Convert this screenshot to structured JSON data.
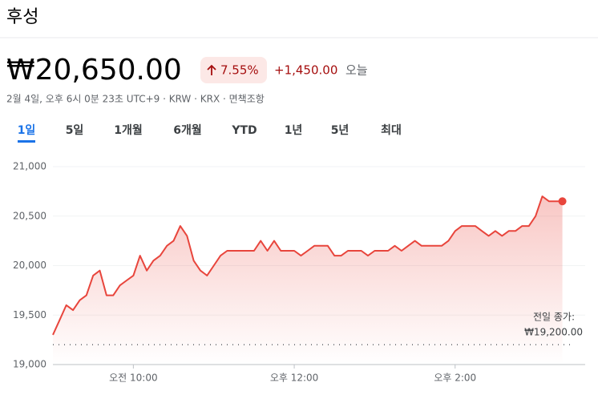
{
  "header": {
    "title": "후성",
    "price": "₩20,650.00",
    "change_percent": "7.55%",
    "change": "+1,450.00",
    "period": "오늘",
    "meta": "2월 4일, 오후 6시 0분 23초 UTC+9 · KRW · KRX · 면책조항"
  },
  "tabs": [
    "1일",
    "5일",
    "1개월",
    "6개월",
    "YTD",
    "1년",
    "5년",
    "최대"
  ],
  "chart_data": {
    "type": "line",
    "color": "#e8453c",
    "grid": true,
    "x": [
      540,
      545,
      550,
      555,
      560,
      565,
      570,
      575,
      580,
      585,
      590,
      595,
      600,
      605,
      610,
      615,
      620,
      625,
      630,
      635,
      640,
      645,
      650,
      655,
      660,
      665,
      670,
      675,
      680,
      685,
      690,
      695,
      700,
      705,
      710,
      715,
      720,
      725,
      730,
      735,
      740,
      745,
      750,
      755,
      760,
      765,
      770,
      775,
      780,
      785,
      790,
      795,
      800,
      805,
      810,
      815,
      820,
      825,
      830,
      835,
      840,
      845,
      850,
      855,
      860,
      865,
      870,
      875,
      880,
      885,
      890,
      895,
      900,
      905,
      910,
      915,
      920
    ],
    "values": [
      19300,
      19450,
      19600,
      19550,
      19650,
      19700,
      19900,
      19950,
      19700,
      19700,
      19800,
      19850,
      19900,
      20100,
      19950,
      20050,
      20100,
      20200,
      20250,
      20400,
      20300,
      20050,
      19950,
      19900,
      20000,
      20100,
      20150,
      20150,
      20150,
      20150,
      20150,
      20250,
      20150,
      20250,
      20150,
      20150,
      20150,
      20100,
      20150,
      20200,
      20200,
      20200,
      20100,
      20100,
      20150,
      20150,
      20150,
      20100,
      20150,
      20150,
      20150,
      20200,
      20150,
      20200,
      20250,
      20200,
      20200,
      20200,
      20200,
      20250,
      20350,
      20400,
      20400,
      20400,
      20350,
      20300,
      20350,
      20300,
      20350,
      20350,
      20400,
      20400,
      20500,
      20700,
      20650,
      20650,
      20650
    ],
    "xlim": [
      540,
      937
    ],
    "xticks": [
      {
        "value": 600,
        "label": "오전 10:00"
      },
      {
        "value": 720,
        "label": "오후 12:00"
      },
      {
        "value": 840,
        "label": "오후 2:00"
      }
    ],
    "ylim": [
      19000,
      21000
    ],
    "yticks": [
      {
        "value": 19000,
        "label": "19,000"
      },
      {
        "value": 19500,
        "label": "19,500"
      },
      {
        "value": 20000,
        "label": "20,000"
      },
      {
        "value": 20500,
        "label": "20,500"
      },
      {
        "value": 21000,
        "label": "21,000"
      }
    ],
    "reference_line": {
      "value": 19200,
      "label": "전일 종가:",
      "value_label": "₩19,200.00"
    }
  }
}
